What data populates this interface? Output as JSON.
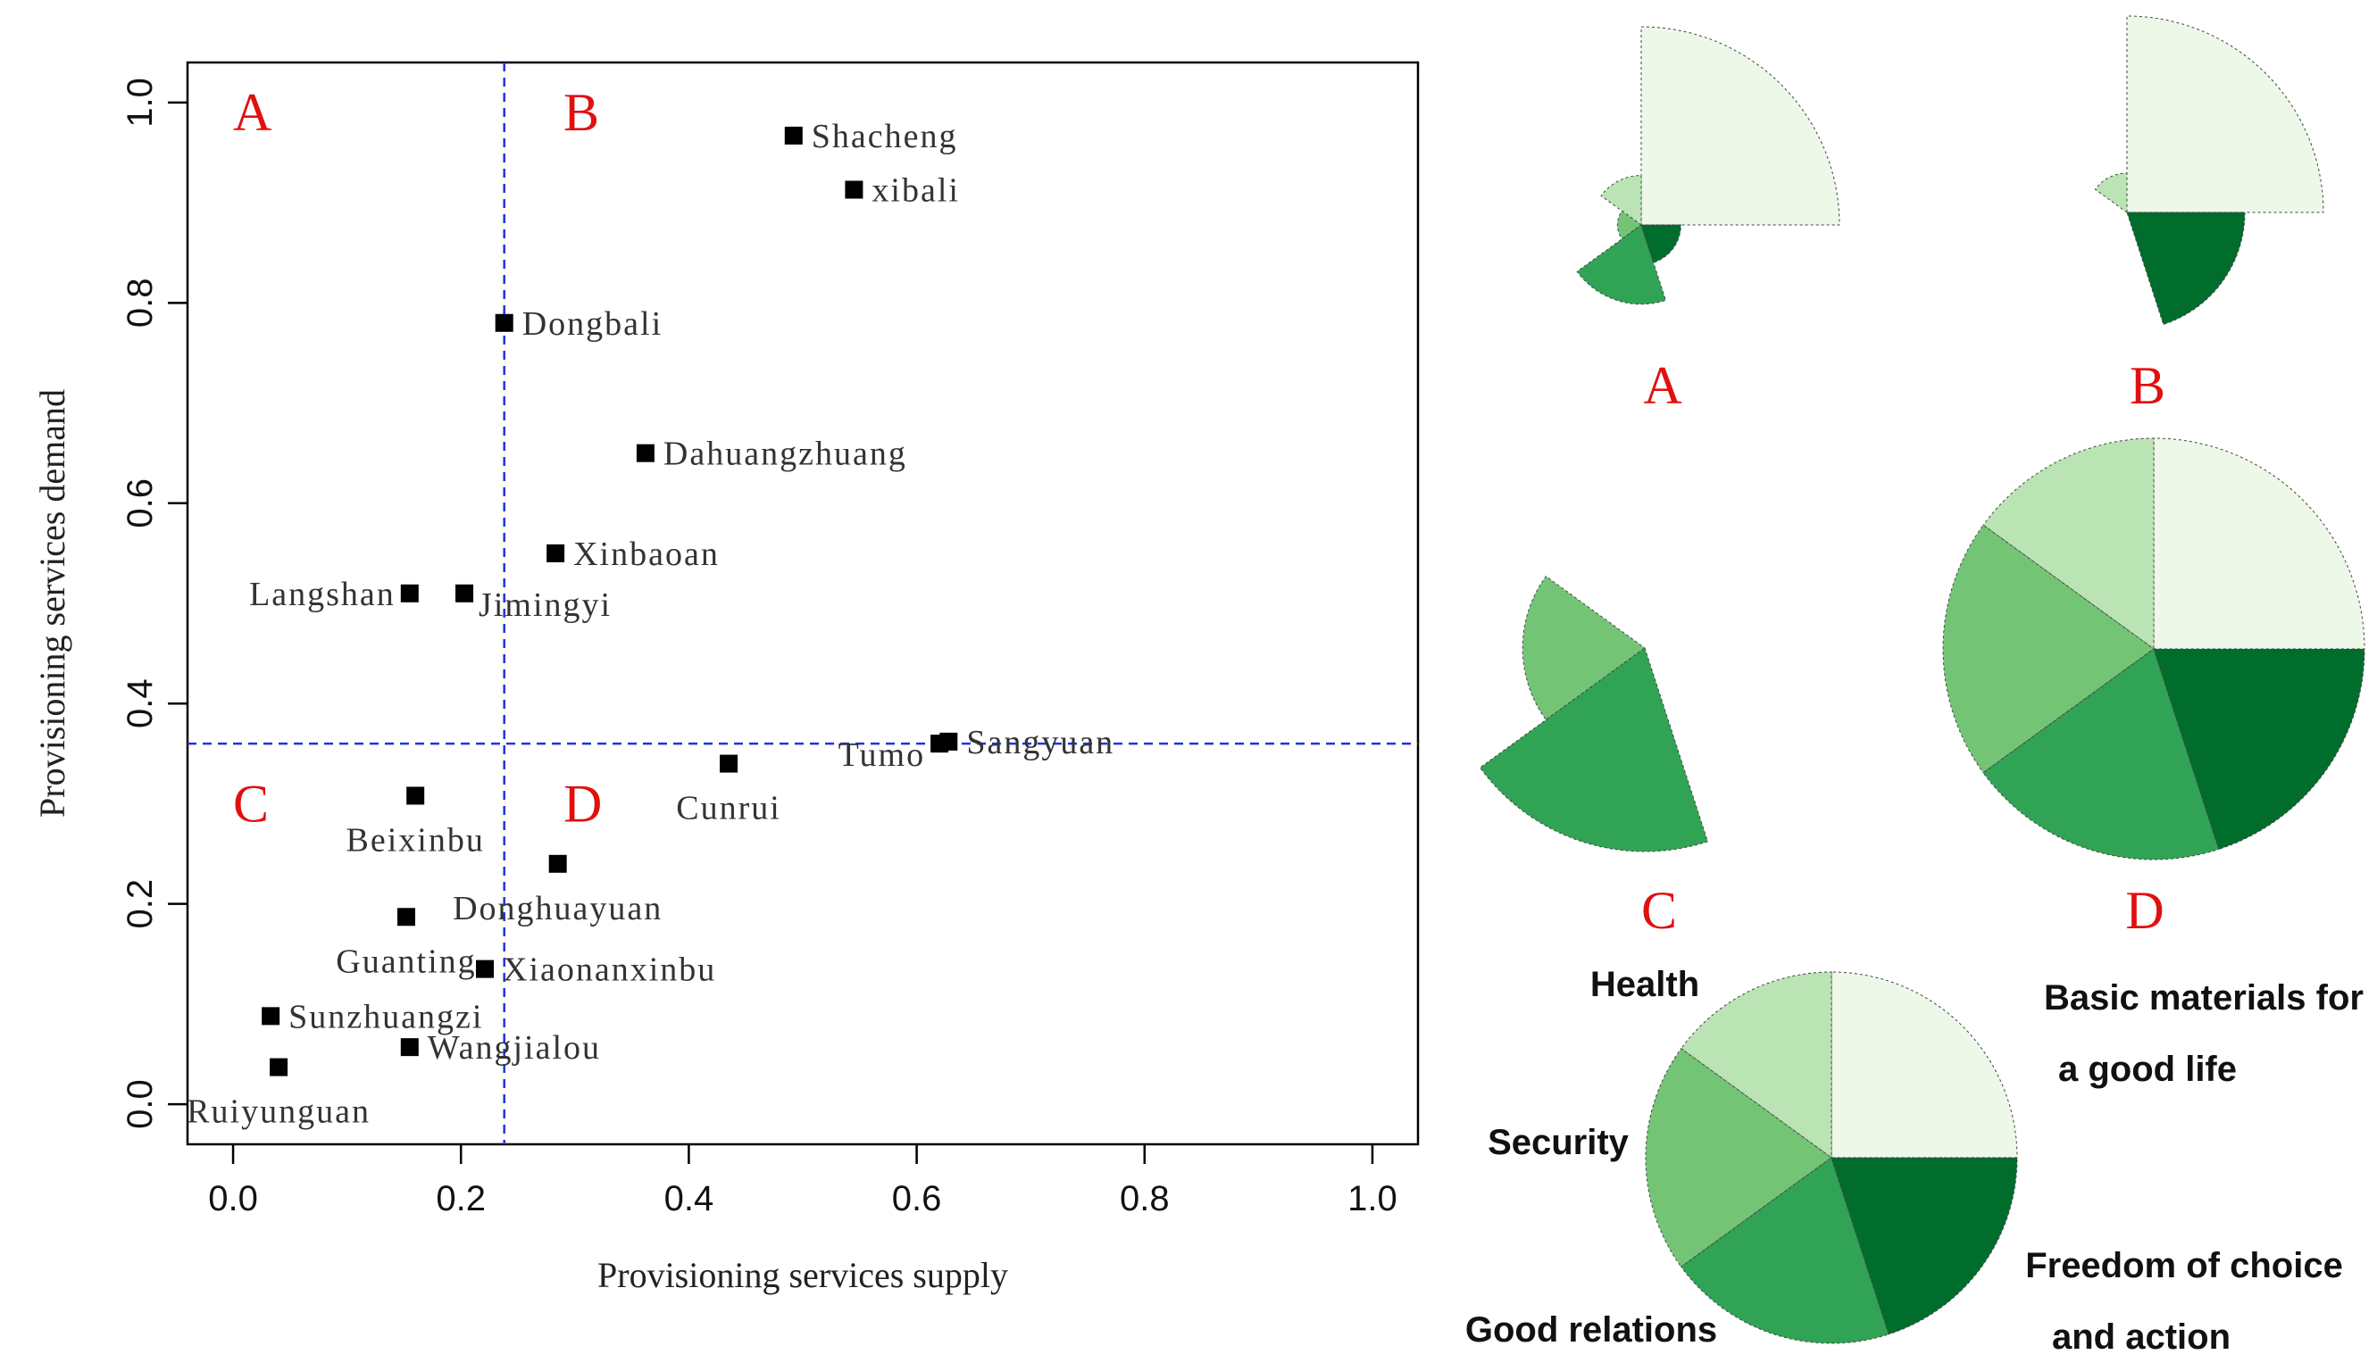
{
  "chart_data": [
    {
      "type": "scatter",
      "xlabel": "Provisioning services supply",
      "ylabel": "Provisioning services demand",
      "xlim": [
        -0.04,
        1.04
      ],
      "ylim": [
        -0.04,
        1.04
      ],
      "xticks": [
        0.0,
        0.2,
        0.4,
        0.6,
        0.8,
        1.0
      ],
      "yticks": [
        0.0,
        0.2,
        0.4,
        0.6,
        0.8,
        1.0
      ],
      "tick_labels": [
        "0.0",
        "0.2",
        "0.4",
        "0.6",
        "0.8",
        "1.0"
      ],
      "divider_x": 0.238,
      "divider_y": 0.36,
      "quadrant_labels": [
        {
          "label": "A",
          "x": 0.0,
          "y": 0.99
        },
        {
          "label": "B",
          "x": 0.29,
          "y": 0.99
        },
        {
          "label": "C",
          "x": 0.0,
          "y": 0.3
        },
        {
          "label": "D",
          "x": 0.29,
          "y": 0.3
        }
      ],
      "points": [
        {
          "name": "Shacheng",
          "x": 0.492,
          "y": 0.967,
          "label_pos": "right"
        },
        {
          "name": "xibali",
          "x": 0.545,
          "y": 0.913,
          "label_pos": "right"
        },
        {
          "name": "Dongbali",
          "x": 0.238,
          "y": 0.78,
          "label_pos": "right"
        },
        {
          "name": "Dahuangzhuang",
          "x": 0.362,
          "y": 0.65,
          "label_pos": "right"
        },
        {
          "name": "Xinbaoan",
          "x": 0.283,
          "y": 0.55,
          "label_pos": "right"
        },
        {
          "name": "Langshan",
          "x": 0.155,
          "y": 0.51,
          "label_pos": "left"
        },
        {
          "name": "Jimingyi",
          "x": 0.203,
          "y": 0.51,
          "label_pos": "right-low"
        },
        {
          "name": "Sangyuan",
          "x": 0.628,
          "y": 0.362,
          "label_pos": "right"
        },
        {
          "name": "Tumo",
          "x": 0.62,
          "y": 0.36,
          "label_pos": "left-low"
        },
        {
          "name": "Cunrui",
          "x": 0.435,
          "y": 0.34,
          "label_pos": "below"
        },
        {
          "name": "Beixinbu",
          "x": 0.16,
          "y": 0.308,
          "label_pos": "below"
        },
        {
          "name": "Donghuayuan",
          "x": 0.285,
          "y": 0.24,
          "label_pos": "below"
        },
        {
          "name": "Guanting",
          "x": 0.152,
          "y": 0.187,
          "label_pos": "below"
        },
        {
          "name": "Xiaonanxinbu",
          "x": 0.221,
          "y": 0.135,
          "label_pos": "right"
        },
        {
          "name": "Sunzhuangzi",
          "x": 0.033,
          "y": 0.088,
          "label_pos": "right"
        },
        {
          "name": "Wangjialou",
          "x": 0.155,
          "y": 0.057,
          "label_pos": "right"
        },
        {
          "name": "Ruiyunguan",
          "x": 0.04,
          "y": 0.037,
          "label_pos": "below"
        }
      ]
    },
    {
      "type": "pie",
      "subtype": "rose",
      "categories": [
        "Basic materials for a good life",
        "Health",
        "Security",
        "Good relations",
        "Freedom of choice and action"
      ],
      "colors": [
        "#edf8e9",
        "#bae4b3",
        "#74c476",
        "#31a354",
        "#006d2c"
      ],
      "panels": [
        {
          "label": "A",
          "values": [
            1.0,
            0.25,
            0.12,
            0.4,
            0.2
          ]
        },
        {
          "label": "B",
          "values": [
            1.0,
            0.2,
            0.0,
            0.0,
            0.6
          ]
        },
        {
          "label": "C",
          "values": [
            0.0,
            0.0,
            0.6,
            1.0,
            0.0
          ]
        },
        {
          "label": "D",
          "values": [
            1.0,
            1.0,
            1.0,
            1.0,
            1.0
          ]
        }
      ],
      "legend": {
        "labels": [
          "Basic materials for",
          "a good life",
          "Health",
          "Security",
          "Good relations",
          "Freedom of choice",
          "and action"
        ]
      }
    }
  ]
}
